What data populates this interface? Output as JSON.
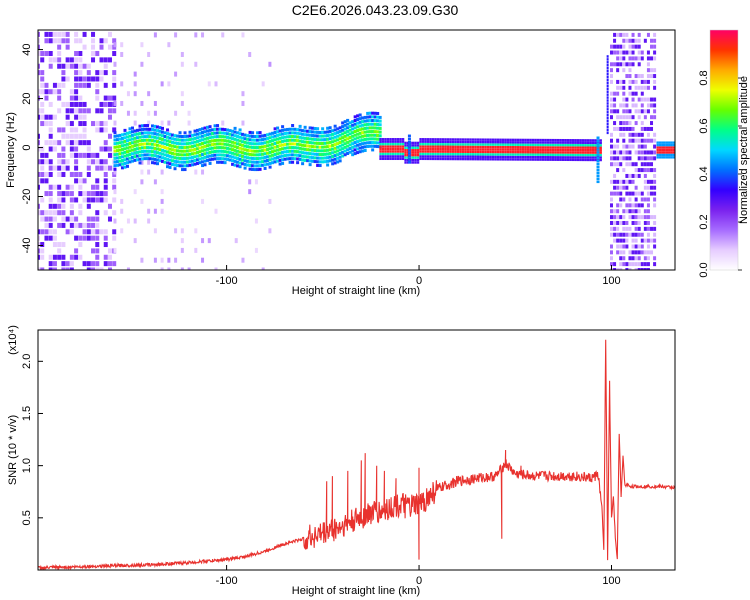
{
  "figure": {
    "title": "C2E6.2026.043.23.09.G30"
  },
  "chart_data": [
    {
      "type": "heatmap",
      "name": "spectrogram",
      "xlabel": "Height of straight line (km)",
      "ylabel": "Frequency (Hz)",
      "xlim": [
        -198,
        133
      ],
      "ylim": [
        -50,
        48
      ],
      "x_ticks": [
        -100,
        0,
        100
      ],
      "y_ticks": [
        -40,
        -20,
        0,
        20,
        40
      ],
      "colorbar": {
        "label": "Normalized spectral amplitude",
        "range": [
          0,
          1
        ],
        "ticks": [
          0.0,
          0.2,
          0.4,
          0.6,
          0.8
        ],
        "colormap": [
          "#ffffff",
          "#e6ccff",
          "#a66bff",
          "#7a22ee",
          "#3300ff",
          "#0070ff",
          "#00d8ff",
          "#00ff88",
          "#66ff00",
          "#eeff00",
          "#ffaa00",
          "#ff3300",
          "#ff0066"
        ]
      },
      "regions": [
        {
          "x_range": [
            -198,
            -158
          ],
          "description_level": 0.2
        },
        {
          "x_range": [
            -158,
            -20
          ],
          "center_freq": 0,
          "level": 0.45
        },
        {
          "x_range": [
            -20,
            95
          ],
          "center_freq": 0,
          "level": 0.85
        },
        {
          "x_range": [
            100,
            123
          ],
          "level": 0.25
        },
        {
          "x_range": [
            125,
            133
          ],
          "center_freq": 0,
          "level": 0.9
        }
      ]
    },
    {
      "type": "line",
      "name": "snr",
      "xlabel": "Height of straight line (km)",
      "ylabel": "SNR (10 * v/v)",
      "y_scale_label": "(x10⁴)",
      "xlim": [
        -198,
        133
      ],
      "ylim": [
        0,
        2.3
      ],
      "x_ticks": [
        -100,
        0,
        100
      ],
      "y_ticks": [
        0.5,
        1.0,
        1.5,
        2.0
      ],
      "color": "#e8322e",
      "series": [
        {
          "x": [
            -198,
            -180,
            -160,
            -140,
            -120,
            -100,
            -90,
            -80,
            -70,
            -60,
            -50,
            -40,
            -30,
            -25,
            -20,
            -15,
            -10,
            -5,
            0,
            5,
            10,
            20,
            30,
            40,
            45,
            50,
            60,
            70,
            80,
            90,
            93,
            95,
            96,
            97,
            98,
            99,
            100,
            101,
            102,
            103,
            104,
            105,
            106,
            107,
            108,
            110,
            115,
            120,
            125,
            133
          ],
          "y": [
            0.02,
            0.03,
            0.04,
            0.05,
            0.07,
            0.1,
            0.13,
            0.18,
            0.25,
            0.3,
            0.35,
            0.42,
            0.5,
            0.55,
            0.55,
            0.6,
            0.62,
            0.6,
            0.62,
            0.7,
            0.78,
            0.85,
            0.88,
            0.9,
            1.02,
            0.92,
            0.9,
            0.9,
            0.9,
            0.88,
            0.92,
            0.6,
            0.2,
            2.2,
            0.1,
            1.8,
            0.5,
            0.7,
            0.3,
            0.1,
            1.3,
            0.7,
            1.1,
            0.8,
            0.82,
            0.8,
            0.8,
            0.8,
            0.8,
            0.79
          ]
        }
      ],
      "spikes": [
        {
          "x": -48,
          "y": 0.85
        },
        {
          "x": -45,
          "y": 0.9
        },
        {
          "x": -37,
          "y": 0.95
        },
        {
          "x": -30,
          "y": 1.05
        },
        {
          "x": -28,
          "y": 1.12
        },
        {
          "x": -22,
          "y": 1.0
        },
        {
          "x": -18,
          "y": 0.95
        },
        {
          "x": -12,
          "y": 0.88
        },
        {
          "x": 0,
          "y": 0.98
        },
        {
          "x": 45,
          "y": 1.15
        },
        {
          "x": 53,
          "y": 1.0
        }
      ],
      "dips": [
        {
          "x": 0,
          "y": 0.1
        },
        {
          "x": 43,
          "y": 0.3
        }
      ]
    }
  ]
}
